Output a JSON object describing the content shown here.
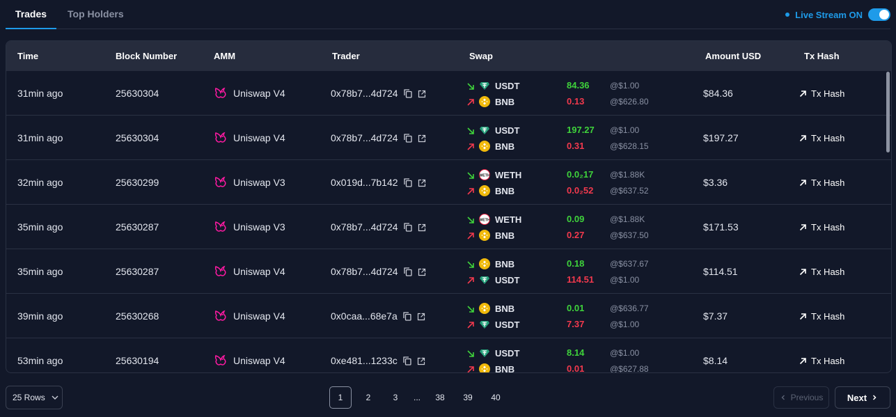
{
  "tabs": [
    {
      "label": "Trades",
      "active": true
    },
    {
      "label": "Top Holders",
      "active": false
    }
  ],
  "live_stream": {
    "label": "Live Stream ON",
    "on": true
  },
  "columns": [
    "Time",
    "Block Number",
    "AMM",
    "Trader",
    "Swap",
    "Amount USD",
    "Tx Hash"
  ],
  "rows": [
    {
      "time": "31min ago",
      "block": "25630304",
      "amm": "Uniswap V4",
      "trader": "0x78b7...4d724",
      "swap": [
        {
          "dir": "in",
          "token": "USDT",
          "amount": "84.36",
          "price": "@$1.00"
        },
        {
          "dir": "out",
          "token": "BNB",
          "amount": "0.13",
          "price": "@$626.80"
        }
      ],
      "usd": "$84.36",
      "tx": "Tx Hash"
    },
    {
      "time": "31min ago",
      "block": "25630304",
      "amm": "Uniswap V4",
      "trader": "0x78b7...4d724",
      "swap": [
        {
          "dir": "in",
          "token": "USDT",
          "amount": "197.27",
          "price": "@$1.00"
        },
        {
          "dir": "out",
          "token": "BNB",
          "amount": "0.31",
          "price": "@$628.15"
        }
      ],
      "usd": "$197.27",
      "tx": "Tx Hash"
    },
    {
      "time": "32min ago",
      "block": "25630299",
      "amm": "Uniswap V3",
      "trader": "0x019d...7b142",
      "swap": [
        {
          "dir": "in",
          "token": "WETH",
          "amount": "0.0₂17",
          "price": "@$1.88K"
        },
        {
          "dir": "out",
          "token": "BNB",
          "amount": "0.0₂52",
          "price": "@$637.52"
        }
      ],
      "usd": "$3.36",
      "tx": "Tx Hash"
    },
    {
      "time": "35min ago",
      "block": "25630287",
      "amm": "Uniswap V3",
      "trader": "0x78b7...4d724",
      "swap": [
        {
          "dir": "in",
          "token": "WETH",
          "amount": "0.09",
          "price": "@$1.88K"
        },
        {
          "dir": "out",
          "token": "BNB",
          "amount": "0.27",
          "price": "@$637.50"
        }
      ],
      "usd": "$171.53",
      "tx": "Tx Hash"
    },
    {
      "time": "35min ago",
      "block": "25630287",
      "amm": "Uniswap V4",
      "trader": "0x78b7...4d724",
      "swap": [
        {
          "dir": "in",
          "token": "BNB",
          "amount": "0.18",
          "price": "@$637.67"
        },
        {
          "dir": "out",
          "token": "USDT",
          "amount": "114.51",
          "price": "@$1.00"
        }
      ],
      "usd": "$114.51",
      "tx": "Tx Hash"
    },
    {
      "time": "39min ago",
      "block": "25630268",
      "amm": "Uniswap V4",
      "trader": "0x0caa...68e7a",
      "swap": [
        {
          "dir": "in",
          "token": "BNB",
          "amount": "0.01",
          "price": "@$636.77"
        },
        {
          "dir": "out",
          "token": "USDT",
          "amount": "7.37",
          "price": "@$1.00"
        }
      ],
      "usd": "$7.37",
      "tx": "Tx Hash"
    },
    {
      "time": "53min ago",
      "block": "25630194",
      "amm": "Uniswap V4",
      "trader": "0xe481...1233c",
      "swap": [
        {
          "dir": "in",
          "token": "USDT",
          "amount": "8.14",
          "price": "@$1.00"
        },
        {
          "dir": "out",
          "token": "BNB",
          "amount": "0.01",
          "price": "@$627.88"
        }
      ],
      "usd": "$8.14",
      "tx": "Tx Hash"
    }
  ],
  "colors": {
    "accent": "#1e9be9",
    "in": "#3fd33b",
    "out": "#f2394d",
    "uniswap": "#ff1aa3",
    "usdt": "#26a17b",
    "bnb": "#f0b90b"
  },
  "footer": {
    "rows_label": "25 Rows",
    "pages": [
      "1",
      "2",
      "3",
      "...",
      "38",
      "39",
      "40"
    ],
    "active_page": "1",
    "prev_label": "Previous",
    "next_label": "Next"
  }
}
